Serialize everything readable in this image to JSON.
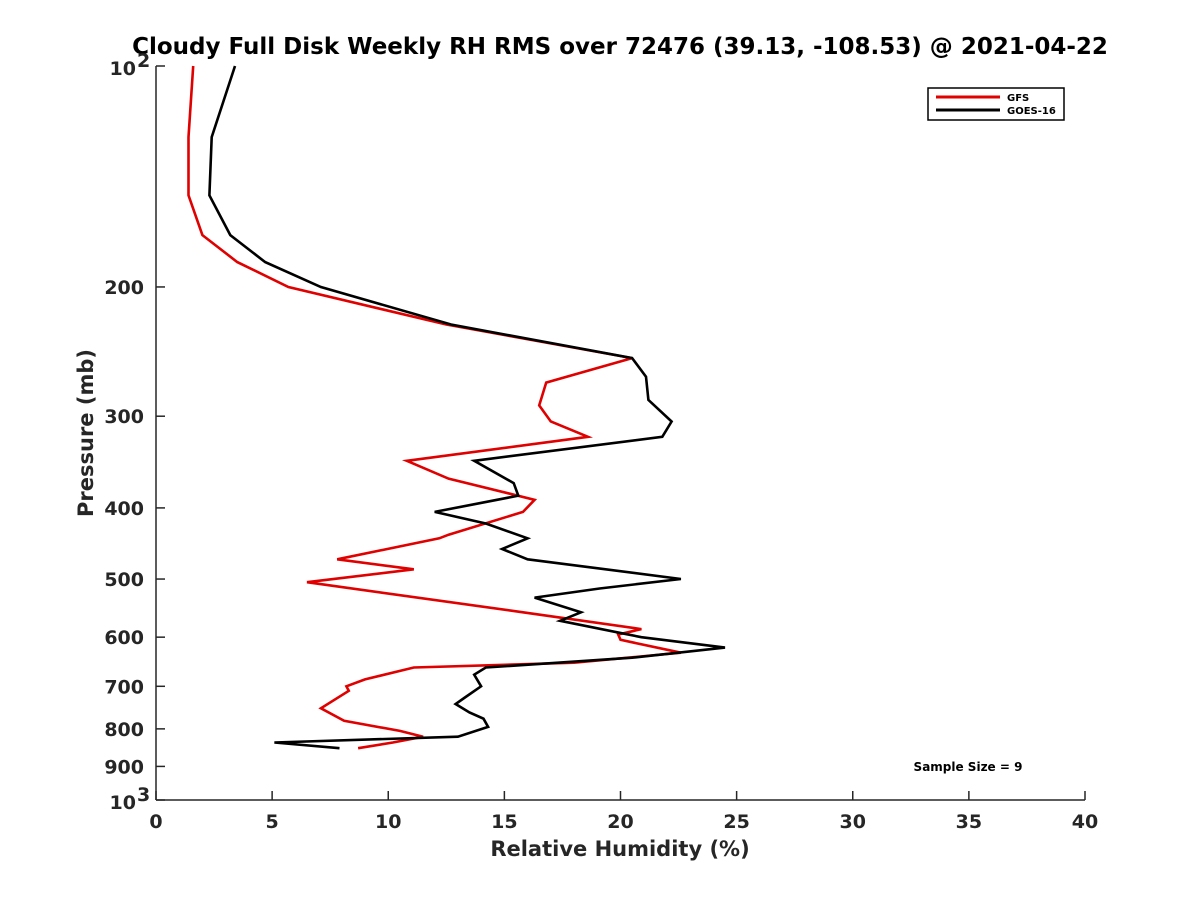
{
  "chart_data": {
    "type": "line",
    "title": "Cloudy Full Disk Weekly RH RMS over 72476 (39.13, -108.53) @ 2021-04-22",
    "xlabel": "Relative Humidity (%)",
    "ylabel": "Pressure (mb)",
    "xlim": [
      0,
      40
    ],
    "ylim": [
      100,
      1000
    ],
    "y_scale": "log",
    "y_reversed": true,
    "x_ticks": [
      "0",
      "5",
      "10",
      "15",
      "20",
      "25",
      "30",
      "35",
      "40"
    ],
    "y_ticks": [
      {
        "value": 100,
        "base": "10",
        "exp": "2"
      },
      {
        "value": 200,
        "label": "200"
      },
      {
        "value": 300,
        "label": "300"
      },
      {
        "value": 400,
        "label": "400"
      },
      {
        "value": 500,
        "label": "500"
      },
      {
        "value": 600,
        "label": "600"
      },
      {
        "value": 700,
        "label": "700"
      },
      {
        "value": 800,
        "label": "800"
      },
      {
        "value": 900,
        "label": "900"
      },
      {
        "value": 1000,
        "base": "10",
        "exp": "3"
      }
    ],
    "grid": false,
    "legend_position": "top-right",
    "annotation": "Sample Size = 9",
    "series": [
      {
        "name": "GFS",
        "color": "#e00000",
        "points": [
          [
            1.6,
            100
          ],
          [
            1.4,
            125
          ],
          [
            1.4,
            150
          ],
          [
            2.0,
            170
          ],
          [
            3.5,
            185
          ],
          [
            5.7,
            200
          ],
          [
            12.5,
            225
          ],
          [
            20.5,
            250
          ],
          [
            16.8,
            270
          ],
          [
            16.5,
            290
          ],
          [
            17.0,
            305
          ],
          [
            18.6,
            320
          ],
          [
            10.8,
            345
          ],
          [
            12.6,
            365
          ],
          [
            16.3,
            390
          ],
          [
            15.8,
            405
          ],
          [
            12.6,
            435
          ],
          [
            12.2,
            440
          ],
          [
            7.8,
            470
          ],
          [
            11.1,
            485
          ],
          [
            6.5,
            505
          ],
          [
            15.8,
            555
          ],
          [
            20.9,
            585
          ],
          [
            19.9,
            595
          ],
          [
            20.0,
            605
          ],
          [
            22.6,
            630
          ],
          [
            18.0,
            650
          ],
          [
            11.1,
            660
          ],
          [
            9.0,
            685
          ],
          [
            8.2,
            700
          ],
          [
            8.3,
            710
          ],
          [
            7.1,
            750
          ],
          [
            8.1,
            780
          ],
          [
            10.5,
            805
          ],
          [
            11.5,
            820
          ],
          [
            10.2,
            835
          ],
          [
            8.7,
            850
          ]
        ]
      },
      {
        "name": "GOES-16",
        "color": "#000000",
        "points": [
          [
            3.4,
            100
          ],
          [
            2.4,
            125
          ],
          [
            2.3,
            150
          ],
          [
            3.2,
            170
          ],
          [
            4.7,
            185
          ],
          [
            7.1,
            200
          ],
          [
            12.7,
            225
          ],
          [
            20.5,
            250
          ],
          [
            21.1,
            265
          ],
          [
            21.2,
            285
          ],
          [
            22.2,
            305
          ],
          [
            21.8,
            320
          ],
          [
            13.7,
            345
          ],
          [
            15.4,
            370
          ],
          [
            15.6,
            385
          ],
          [
            12.0,
            405
          ],
          [
            14.2,
            420
          ],
          [
            16.0,
            440
          ],
          [
            14.9,
            455
          ],
          [
            16.0,
            470
          ],
          [
            22.6,
            500
          ],
          [
            19.1,
            515
          ],
          [
            16.3,
            530
          ],
          [
            18.3,
            555
          ],
          [
            17.4,
            570
          ],
          [
            20.9,
            600
          ],
          [
            24.5,
            620
          ],
          [
            20.5,
            640
          ],
          [
            14.2,
            660
          ],
          [
            13.7,
            675
          ],
          [
            14.0,
            700
          ],
          [
            13.3,
            725
          ],
          [
            12.9,
            740
          ],
          [
            13.5,
            760
          ],
          [
            14.1,
            775
          ],
          [
            14.3,
            795
          ],
          [
            13.0,
            820
          ],
          [
            5.1,
            835
          ],
          [
            7.9,
            850
          ]
        ]
      }
    ]
  }
}
